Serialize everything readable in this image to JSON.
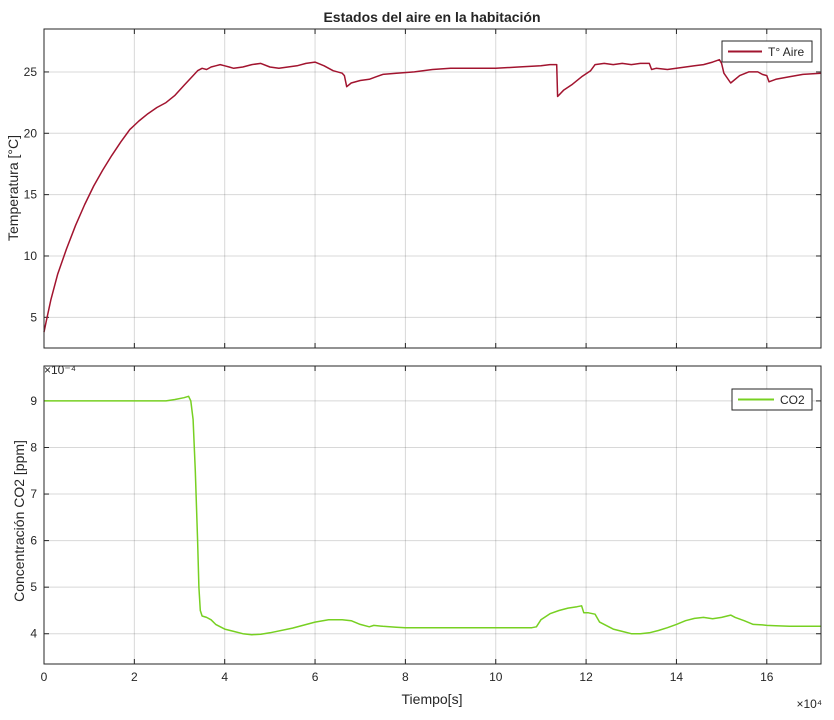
{
  "figure": {
    "background": "#ffffff",
    "grid_color": "#262626",
    "axis_color": "#262626"
  },
  "chart_data": [
    {
      "type": "line",
      "title": "Estados del aire en la habitación",
      "xlabel": "",
      "ylabel": "Temperatura [°C]",
      "xlim": [
        0,
        172000
      ],
      "ylim": [
        2.5,
        28.5
      ],
      "xticks": [
        0,
        20000,
        40000,
        60000,
        80000,
        100000,
        120000,
        140000,
        160000
      ],
      "xtick_labels_visible": false,
      "yticks": [
        5,
        10,
        15,
        20,
        25
      ],
      "ytick_labels": [
        "5",
        "10",
        "15",
        "20",
        "25"
      ],
      "grid": true,
      "legend_position": "top-right",
      "series": [
        {
          "name": "T° Aire",
          "color": "#a2142f",
          "x": [
            0,
            500,
            1500,
            3000,
            5000,
            7000,
            9000,
            11000,
            13000,
            15000,
            17000,
            19000,
            21000,
            23000,
            25000,
            27000,
            29000,
            31000,
            33000,
            34000,
            35000,
            36000,
            37000,
            38000,
            39000,
            40000,
            41000,
            42000,
            44000,
            46000,
            48000,
            50000,
            52000,
            54000,
            56000,
            58000,
            60000,
            62000,
            64000,
            66000,
            66500,
            67000,
            68000,
            70000,
            72000,
            73500,
            75000,
            78000,
            82000,
            86000,
            90000,
            95000,
            100000,
            105000,
            110000,
            112000,
            113500,
            113700,
            115000,
            117000,
            119000,
            121000,
            122000,
            124000,
            126000,
            128000,
            130000,
            132000,
            134000,
            134500,
            135500,
            138000,
            140000,
            142000,
            144000,
            146000,
            148000,
            149500,
            150000,
            150500,
            152000,
            154000,
            156000,
            158000,
            159000,
            160000,
            160500,
            162000,
            165000,
            168000,
            172000
          ],
          "y": [
            3.8,
            4.7,
            6.4,
            8.5,
            10.6,
            12.5,
            14.2,
            15.7,
            17.0,
            18.2,
            19.3,
            20.3,
            21.0,
            21.6,
            22.1,
            22.5,
            23.1,
            23.9,
            24.7,
            25.1,
            25.3,
            25.2,
            25.4,
            25.5,
            25.6,
            25.5,
            25.4,
            25.3,
            25.4,
            25.6,
            25.7,
            25.4,
            25.3,
            25.4,
            25.5,
            25.7,
            25.8,
            25.5,
            25.1,
            24.9,
            24.7,
            23.8,
            24.1,
            24.3,
            24.4,
            24.6,
            24.8,
            24.9,
            25.0,
            25.2,
            25.3,
            25.3,
            25.3,
            25.4,
            25.5,
            25.6,
            25.6,
            23.0,
            23.5,
            24.0,
            24.6,
            25.1,
            25.6,
            25.7,
            25.6,
            25.7,
            25.6,
            25.7,
            25.7,
            25.2,
            25.3,
            25.2,
            25.3,
            25.4,
            25.5,
            25.6,
            25.8,
            26.0,
            25.7,
            24.9,
            24.1,
            24.7,
            25.0,
            25.0,
            24.8,
            24.7,
            24.2,
            24.4,
            24.6,
            24.8,
            24.9
          ]
        }
      ]
    },
    {
      "type": "line",
      "title": "",
      "xlabel": "Tiempo[s]",
      "ylabel": "Concentración CO2 [ppm]",
      "y_exponent_label": "×10⁻⁴",
      "x_exponent_label": "×10⁴",
      "xlim": [
        0,
        172000
      ],
      "ylim": [
        3.35,
        9.75
      ],
      "xticks": [
        0,
        20000,
        40000,
        60000,
        80000,
        100000,
        120000,
        140000,
        160000
      ],
      "xtick_labels": [
        "0",
        "2",
        "4",
        "6",
        "8",
        "10",
        "12",
        "14",
        "16"
      ],
      "yticks": [
        4,
        5,
        6,
        7,
        8,
        9
      ],
      "ytick_labels": [
        "4",
        "5",
        "6",
        "7",
        "8",
        "9"
      ],
      "grid": true,
      "legend_position": "top-right",
      "series": [
        {
          "name": "CO2",
          "color": "#77d022",
          "x": [
            0,
            10000,
            20000,
            27000,
            29000,
            31000,
            32000,
            32500,
            33000,
            33500,
            34000,
            34300,
            34600,
            35000,
            36000,
            37000,
            38000,
            40000,
            42000,
            44000,
            46000,
            48000,
            50000,
            55000,
            60000,
            63000,
            66000,
            68000,
            70000,
            72000,
            73000,
            75000,
            78000,
            80000,
            85000,
            90000,
            95000,
            100000,
            105000,
            108000,
            109000,
            110000,
            112000,
            114000,
            116000,
            118000,
            119000,
            119500,
            120500,
            122000,
            123000,
            124000,
            126000,
            128000,
            130000,
            132000,
            134000,
            136000,
            138000,
            140000,
            142000,
            144000,
            146000,
            148000,
            150000,
            152000,
            153000,
            155000,
            157000,
            159000,
            160000,
            162000,
            165000,
            168000,
            172000
          ],
          "y": [
            9.0,
            9.0,
            9.0,
            9.0,
            9.03,
            9.07,
            9.1,
            9.0,
            8.6,
            7.5,
            6.0,
            5.0,
            4.5,
            4.38,
            4.35,
            4.3,
            4.2,
            4.1,
            4.05,
            4.0,
            3.98,
            3.99,
            4.02,
            4.12,
            4.25,
            4.3,
            4.3,
            4.28,
            4.2,
            4.15,
            4.18,
            4.16,
            4.14,
            4.13,
            4.13,
            4.13,
            4.13,
            4.13,
            4.13,
            4.13,
            4.15,
            4.3,
            4.43,
            4.5,
            4.55,
            4.58,
            4.6,
            4.45,
            4.45,
            4.42,
            4.25,
            4.2,
            4.1,
            4.05,
            4.0,
            4.0,
            4.02,
            4.07,
            4.13,
            4.2,
            4.28,
            4.33,
            4.35,
            4.32,
            4.35,
            4.4,
            4.35,
            4.28,
            4.2,
            4.19,
            4.18,
            4.17,
            4.16,
            4.16,
            4.16
          ]
        }
      ]
    }
  ]
}
